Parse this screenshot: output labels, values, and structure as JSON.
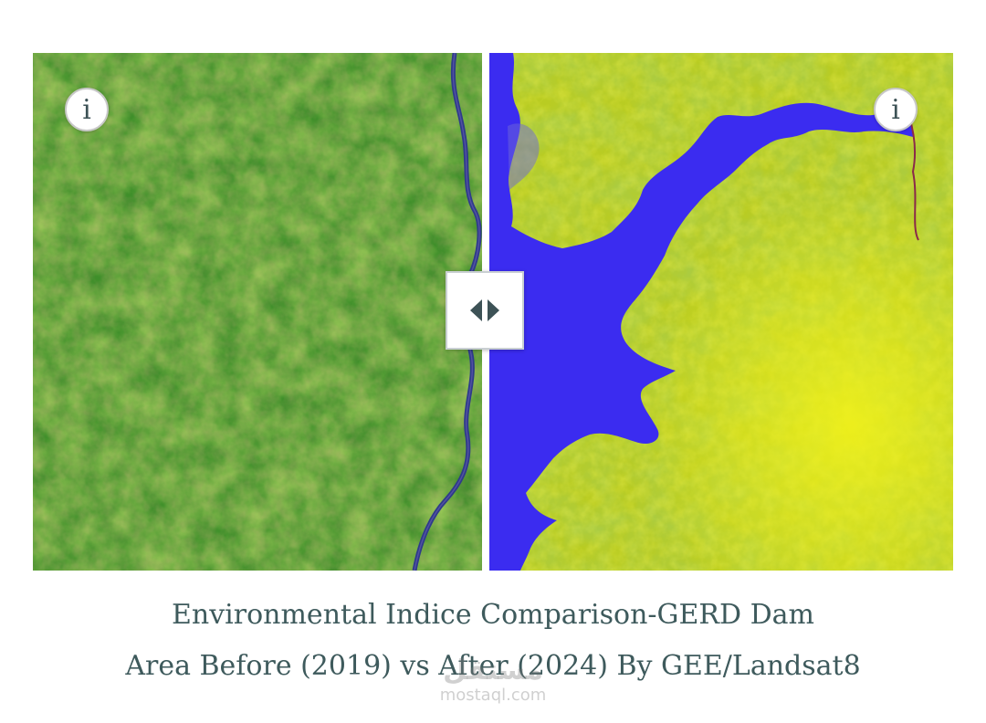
{
  "slider": {
    "left_image_label": "Before (2019)",
    "right_image_label": "After (2024)",
    "info_left": "i",
    "info_right": "i",
    "handle_icon": "left-right-arrows-icon"
  },
  "caption": {
    "line1": "Environmental Indice Comparison-GERD Dam",
    "line2": "Area Before (2019) vs After (2024) By GEE/Landsat8"
  },
  "watermark": {
    "logo": "مستقل",
    "text": "mostaql.com"
  },
  "colors": {
    "caption": "#3e5a5c",
    "vegetation_before": "#3f8f2a",
    "vegetation_after": "#c8d820",
    "water": "#3b2cf0",
    "river": "#2e3b8a"
  }
}
